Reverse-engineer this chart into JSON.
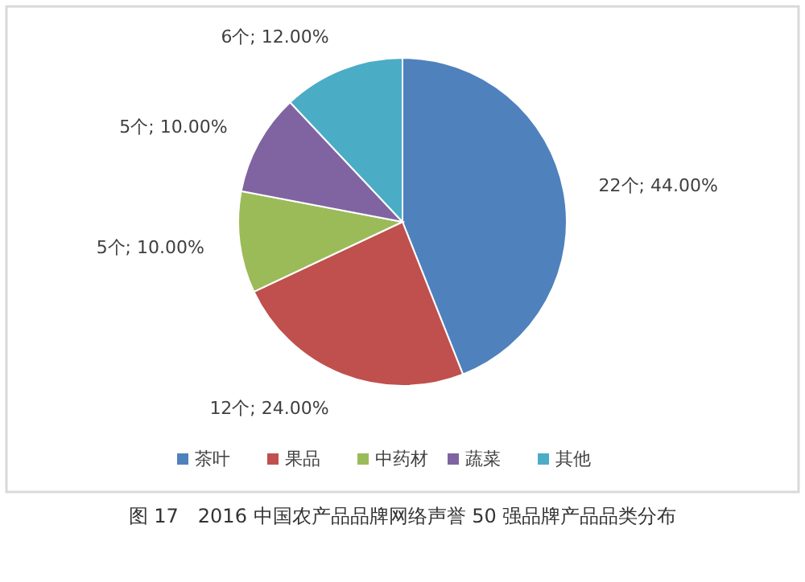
{
  "chart_data": {
    "type": "pie",
    "categories": [
      "茶叶",
      "果品",
      "中药材",
      "蔬菜",
      "其他"
    ],
    "values": [
      22,
      12,
      5,
      5,
      6
    ],
    "colors": [
      "#4f81bd",
      "#c0504d",
      "#9bbb59",
      "#8064a2",
      "#4bacc6"
    ],
    "value_labels": [
      "22个; 44.00%",
      "12个; 24.00%",
      "5个; 10.00%",
      "5个; 10.00%",
      "6个; 12.00%"
    ],
    "legend": "bottom",
    "annotations": [
      "图 17　2016 中国农产品品牌网络声誉 50 强品牌产品品类分布"
    ]
  }
}
